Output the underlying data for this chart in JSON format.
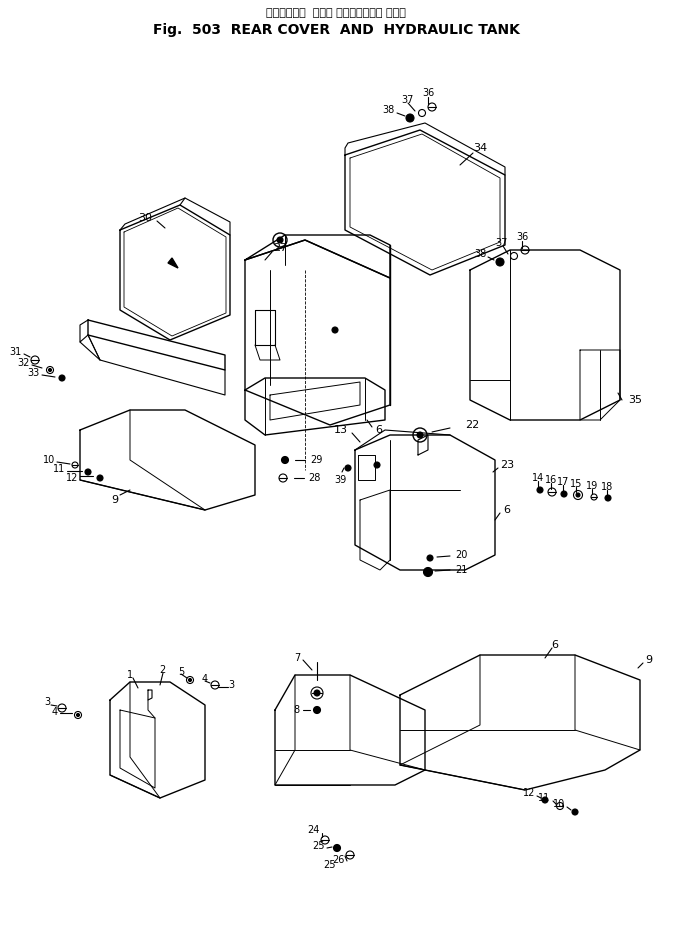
{
  "title_japanese": "リヤーカバー  および ハイドロリック タンク",
  "title_english": "Fig.  503  REAR COVER  AND  HYDRAULIC TANK",
  "bg_color": "#ffffff",
  "line_color": "#000000",
  "title_fontsize_jp": 8,
  "title_fontsize_en": 10,
  "fig_width": 6.73,
  "fig_height": 9.34,
  "dpi": 100
}
